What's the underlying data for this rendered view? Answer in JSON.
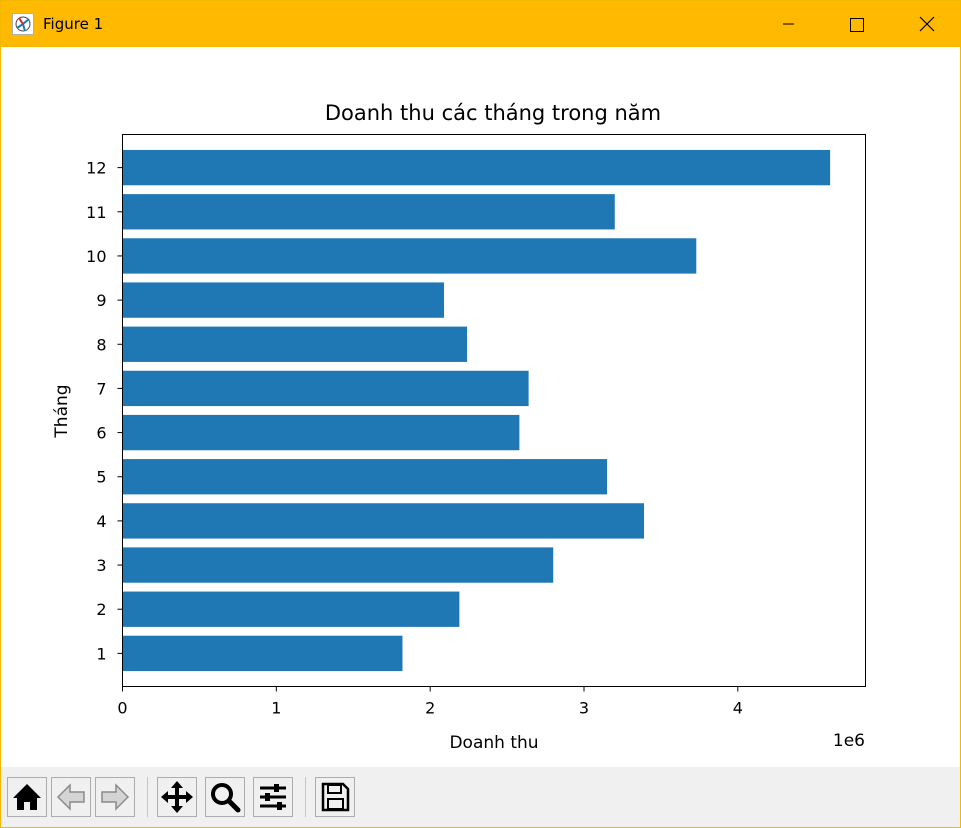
{
  "window": {
    "title": "Figure 1",
    "icons": [
      "app-icon",
      "minimize-icon",
      "maximize-icon",
      "close-icon"
    ],
    "titlebar_color": "#ffb900"
  },
  "toolbar": {
    "buttons": [
      {
        "name": "home-button",
        "icon": "home-icon"
      },
      {
        "name": "back-button",
        "icon": "arrow-left-icon"
      },
      {
        "name": "forward-button",
        "icon": "arrow-right-icon"
      },
      {
        "name": "pan-button",
        "icon": "move-icon"
      },
      {
        "name": "zoom-button",
        "icon": "magnifier-icon"
      },
      {
        "name": "configure-button",
        "icon": "sliders-icon"
      },
      {
        "name": "save-button",
        "icon": "floppy-disk-icon"
      }
    ]
  },
  "chart_data": {
    "type": "bar",
    "orientation": "horizontal",
    "title": "Doanh thu các tháng trong năm",
    "xlabel": "Doanh thu",
    "ylabel": "Tháng",
    "offset_label": "1e6",
    "categories": [
      "1",
      "2",
      "3",
      "4",
      "5",
      "6",
      "7",
      "8",
      "9",
      "10",
      "11",
      "12"
    ],
    "values": [
      1820000,
      2190000,
      2800000,
      3390000,
      3150000,
      2580000,
      2640000,
      2240000,
      2090000,
      3730000,
      3200000,
      4600000
    ],
    "xlim": [
      0,
      4830000
    ],
    "xticks": [
      0,
      1000000,
      2000000,
      3000000,
      4000000
    ],
    "xtick_labels": [
      "0",
      "1",
      "2",
      "3",
      "4"
    ],
    "bar_color": "#1f77b4",
    "grid": false
  }
}
